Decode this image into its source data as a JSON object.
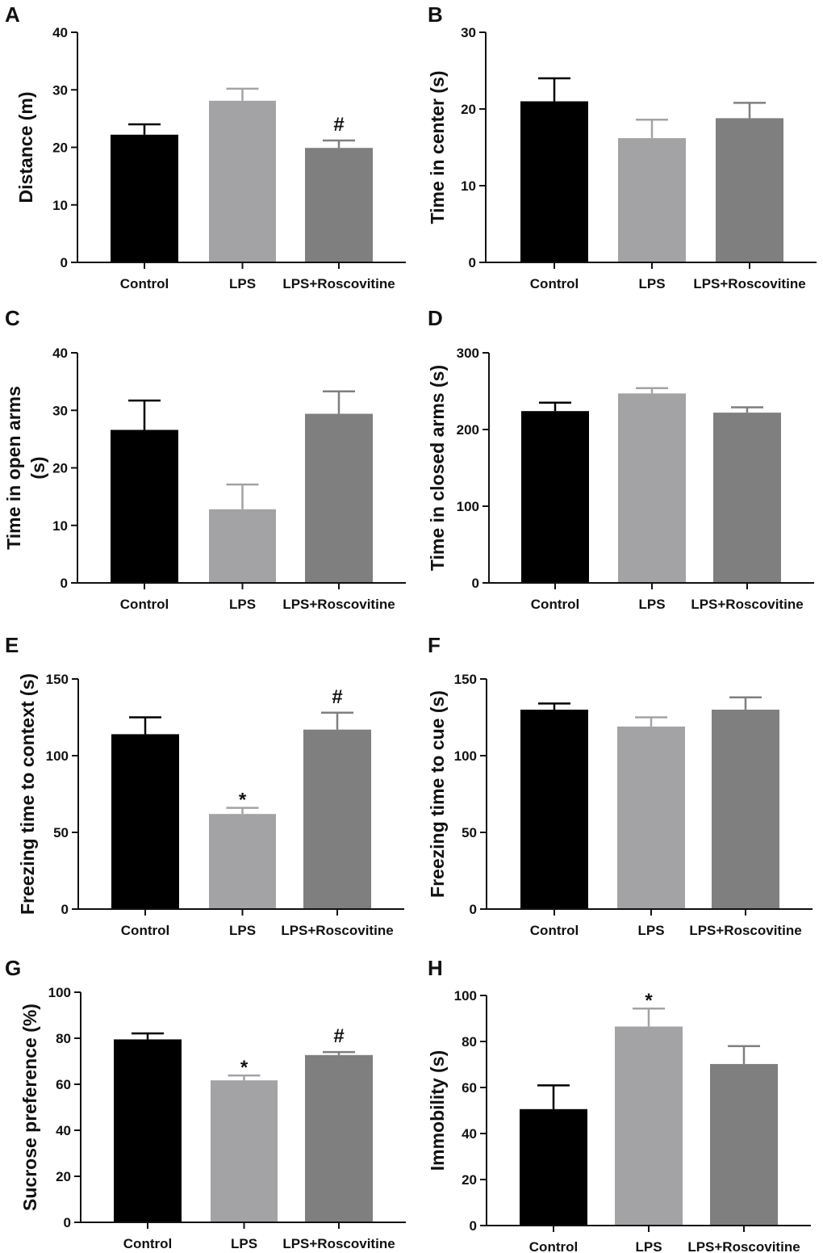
{
  "colors": {
    "control": "#000000",
    "lps": "#a3a3a6",
    "lps_roscovitine": "#7f7f7f",
    "axis": "#111111"
  },
  "chart_data": [
    {
      "panel": "A",
      "type": "bar",
      "categories": [
        "Control",
        "LPS",
        "LPS+Roscovitine"
      ],
      "values": [
        22.2,
        28.1,
        19.9
      ],
      "errors": [
        1.8,
        2.1,
        1.3
      ],
      "ylabel_lines": [
        "Distance (m)"
      ],
      "ylim": [
        0,
        40
      ],
      "yticks": [
        0,
        10,
        20,
        30,
        40
      ],
      "annotations": [
        "",
        "",
        "#"
      ]
    },
    {
      "panel": "B",
      "type": "bar",
      "categories": [
        "Control",
        "LPS",
        "LPS+Roscovitine"
      ],
      "values": [
        21.0,
        16.2,
        18.8
      ],
      "errors": [
        3.0,
        2.4,
        2.0
      ],
      "ylabel_lines": [
        "Time in center (s)"
      ],
      "ylim": [
        0,
        30
      ],
      "yticks": [
        0,
        10,
        20,
        30
      ],
      "annotations": [
        "",
        "",
        ""
      ]
    },
    {
      "panel": "C",
      "type": "bar",
      "categories": [
        "Control",
        "LPS",
        "LPS+Roscovitine"
      ],
      "values": [
        26.6,
        12.8,
        29.4
      ],
      "errors": [
        5.1,
        4.3,
        3.9
      ],
      "ylabel_lines": [
        "Time in open arms",
        "(s)"
      ],
      "ylim": [
        0,
        40
      ],
      "yticks": [
        0,
        10,
        20,
        30,
        40
      ],
      "annotations": [
        "",
        "",
        ""
      ]
    },
    {
      "panel": "D",
      "type": "bar",
      "categories": [
        "Control",
        "LPS",
        "LPS+Roscovitine"
      ],
      "values": [
        224,
        247,
        222
      ],
      "errors": [
        11,
        7,
        7
      ],
      "ylabel_lines": [
        "Time in closed arms (s)"
      ],
      "ylim": [
        0,
        300
      ],
      "yticks": [
        0,
        100,
        200,
        300
      ],
      "annotations": [
        "",
        "",
        ""
      ]
    },
    {
      "panel": "E",
      "type": "bar",
      "categories": [
        "Control",
        "LPS",
        "LPS+Roscovitine"
      ],
      "values": [
        114,
        62,
        117
      ],
      "errors": [
        11,
        4,
        11
      ],
      "ylabel_lines": [
        "Freezing time to context (s)"
      ],
      "ylim": [
        0,
        150
      ],
      "yticks": [
        0,
        50,
        100,
        150
      ],
      "annotations": [
        "",
        "*",
        "#"
      ]
    },
    {
      "panel": "F",
      "type": "bar",
      "categories": [
        "Control",
        "LPS",
        "LPS+Roscovitine"
      ],
      "values": [
        130,
        119,
        130
      ],
      "errors": [
        4,
        6,
        8
      ],
      "ylabel_lines": [
        "Freezing time to cue (s)"
      ],
      "ylim": [
        0,
        150
      ],
      "yticks": [
        0,
        50,
        100,
        150
      ],
      "annotations": [
        "",
        "",
        ""
      ]
    },
    {
      "panel": "G",
      "type": "bar",
      "categories": [
        "Control",
        "LPS",
        "LPS+Roscovitine"
      ],
      "values": [
        79.5,
        61.7,
        72.7
      ],
      "errors": [
        2.6,
        2.1,
        1.3
      ],
      "ylabel_lines": [
        "Sucrose  preference (%)"
      ],
      "ylim": [
        0,
        100
      ],
      "yticks": [
        0,
        20,
        40,
        60,
        80,
        100
      ],
      "annotations": [
        "",
        "*",
        "#"
      ]
    },
    {
      "panel": "H",
      "type": "bar",
      "categories": [
        "Control",
        "LPS",
        "LPS+Roscovitine"
      ],
      "values": [
        50.6,
        86.5,
        70.2
      ],
      "errors": [
        10.3,
        7.8,
        7.8
      ],
      "ylabel_lines": [
        "Immobility (s)"
      ],
      "ylim": [
        0,
        100
      ],
      "yticks": [
        0,
        20,
        40,
        60,
        80,
        100
      ],
      "annotations": [
        "",
        "*",
        ""
      ]
    }
  ]
}
